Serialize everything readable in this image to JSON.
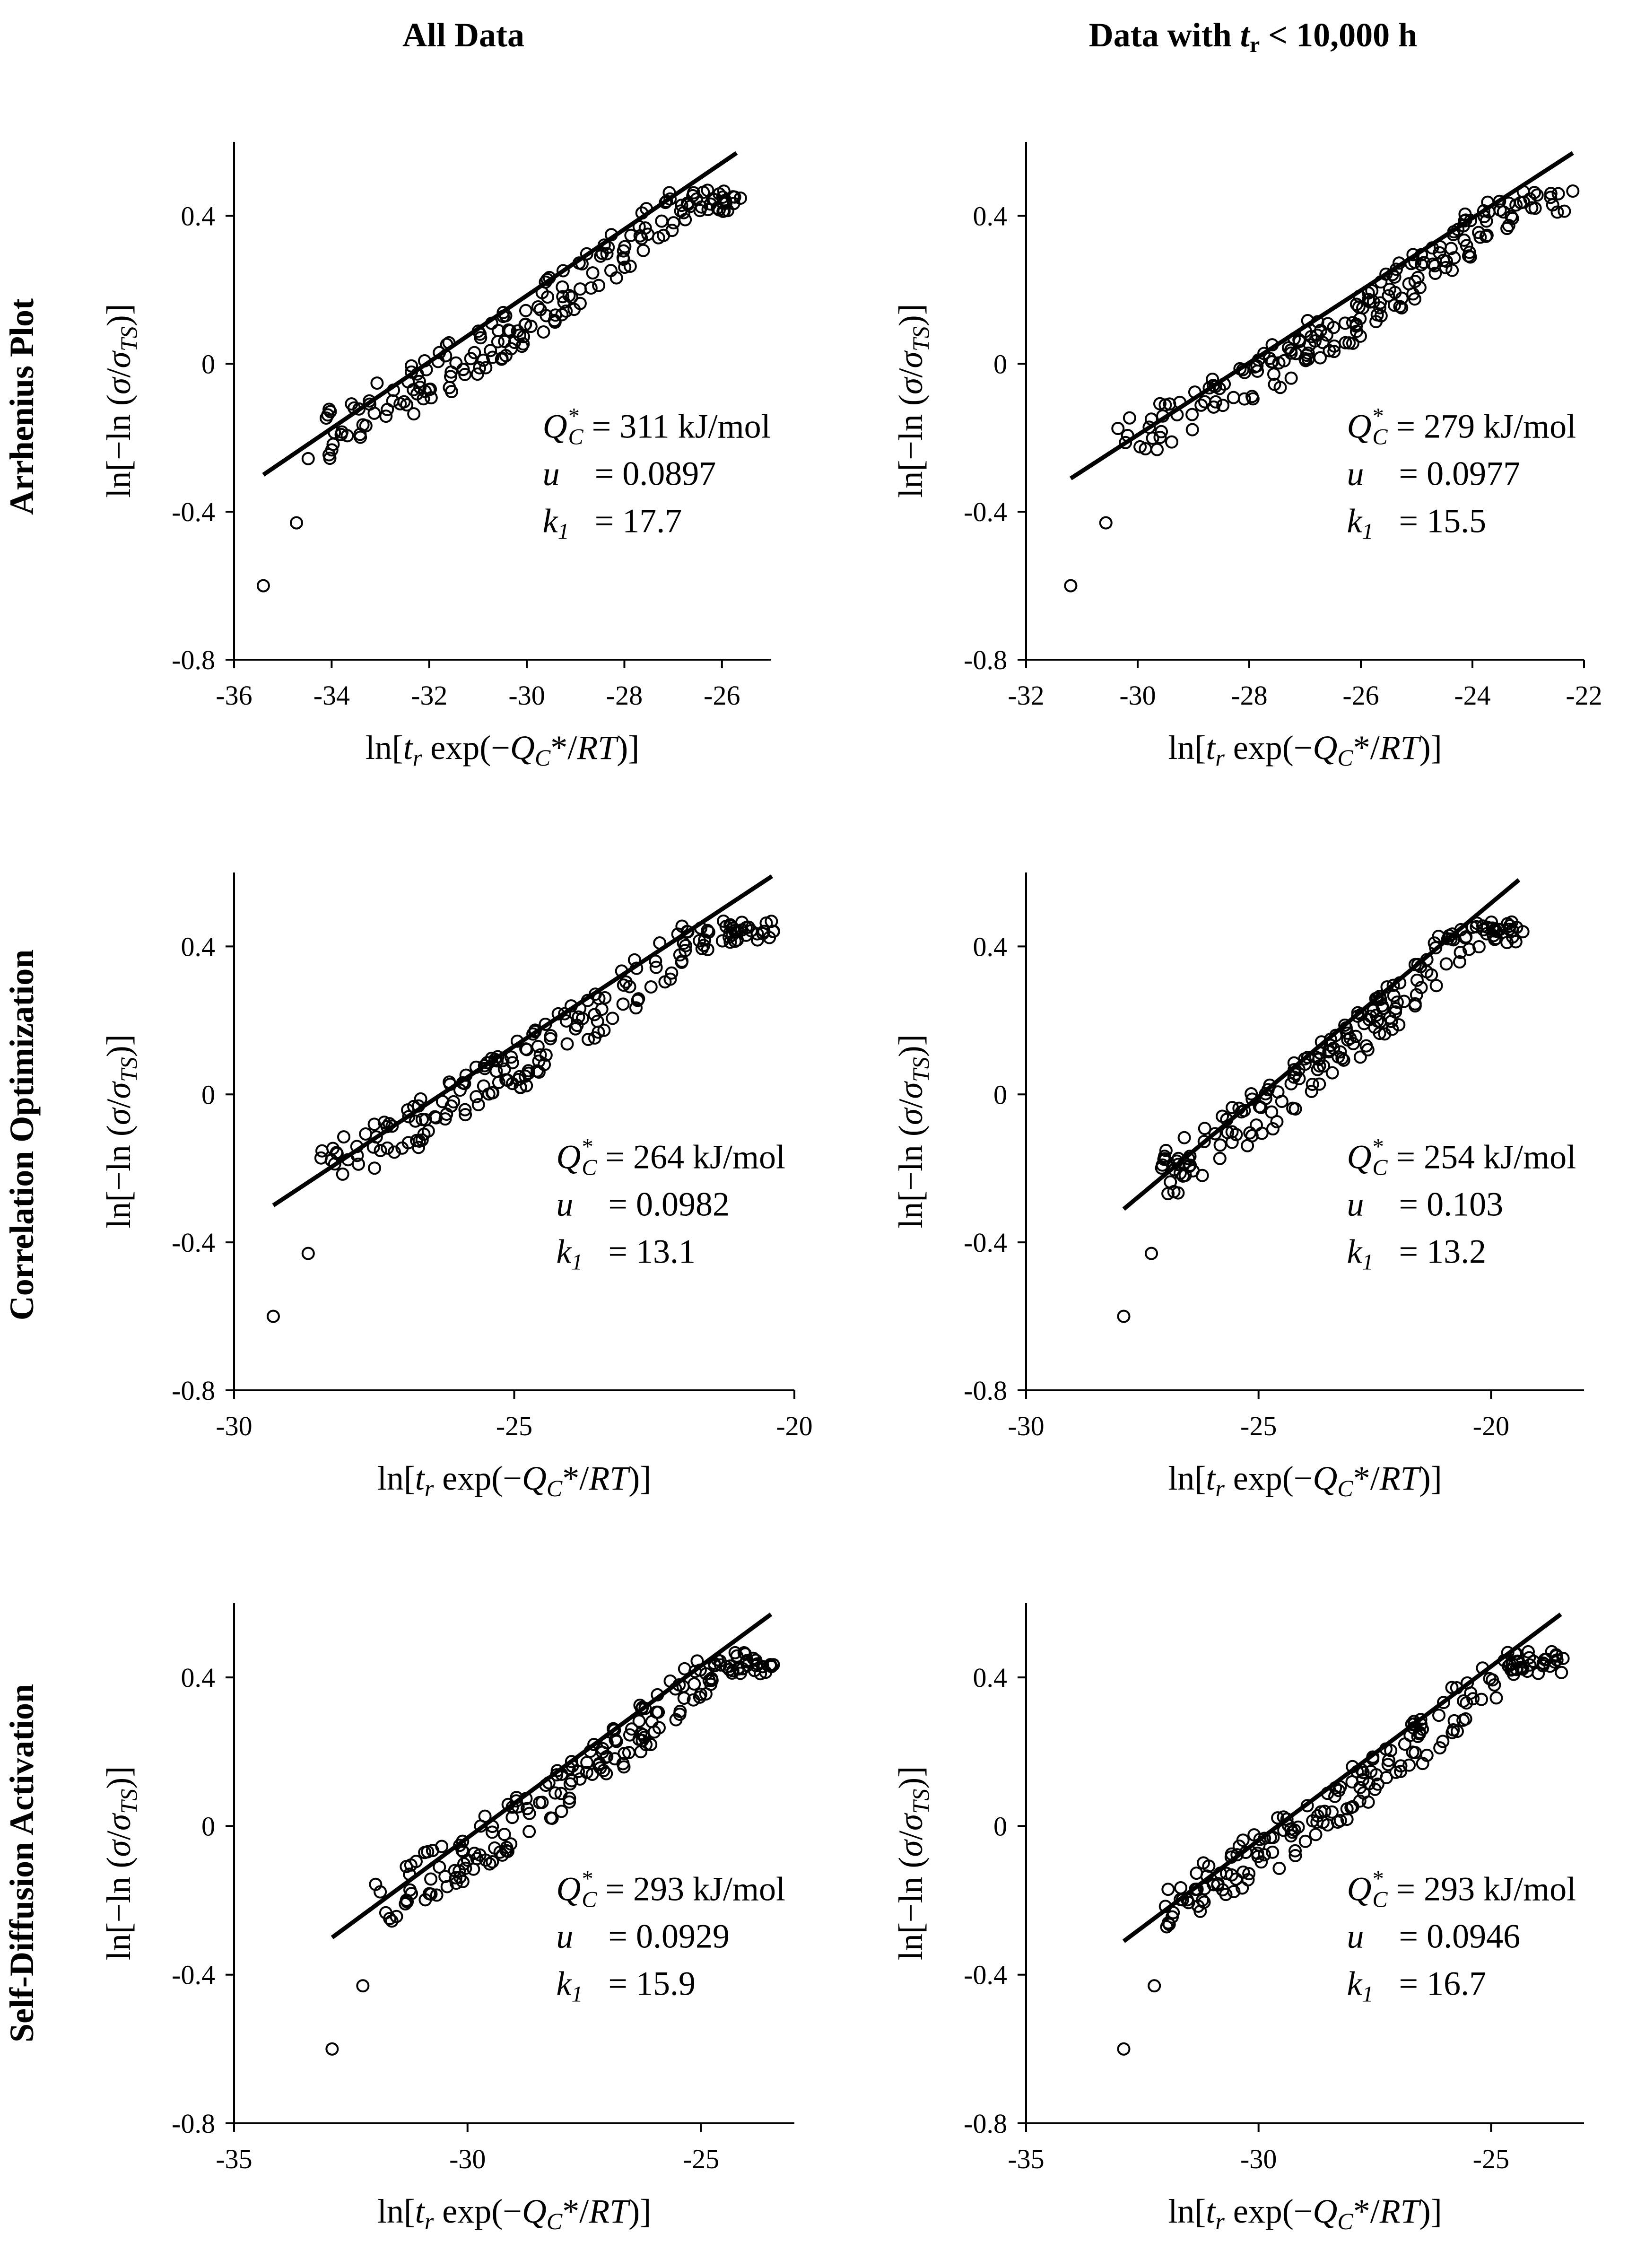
{
  "figure": {
    "column_titles": [
      {
        "pre": "All Data",
        "sym": "",
        "sub": "",
        "post": ""
      },
      {
        "pre": "Data with ",
        "sym": "t",
        "sub": "r",
        "post": " < 10,000 h"
      }
    ],
    "row_titles": [
      "Arrhenius Plot",
      "Correlation Optimization",
      "Self-Diffusion Activation"
    ],
    "x_axis_label": {
      "a": "ln[",
      "b": "t",
      "c": "r",
      "d": " exp(−",
      "e": "Q",
      "f": "C",
      "g": "*/",
      "h": "RT",
      "i": ")]"
    },
    "y_axis_label": {
      "a": "ln[−ln (",
      "b": "σ",
      "c": "/",
      "d": "σ",
      "e": "TS",
      "f": ")]"
    },
    "annotation_labels": {
      "q": "Q",
      "q_sub": "C",
      "q_sup": "*",
      "u": "u",
      "k": "k",
      "k_sub": "1",
      "eq": "=",
      "q_unit": "kJ/mol"
    }
  },
  "chart_data": [
    {
      "id": "arrhenius-all",
      "type": "scatter",
      "title": "Arrhenius Plot — All Data",
      "xlim": [
        -36,
        -25
      ],
      "xticks": [
        -36,
        -34,
        -32,
        -30,
        -28,
        -26
      ],
      "ylim": [
        -0.8,
        0.6
      ],
      "yticks": [
        -0.8,
        -0.4,
        0,
        0.4
      ],
      "fit_line": {
        "x": [
          -35.4,
          -25.7
        ],
        "y": [
          -0.3,
          0.57
        ]
      },
      "Qc": "311",
      "u": "0.0897",
      "k1": "17.7"
    },
    {
      "id": "arrhenius-subset",
      "type": "scatter",
      "title": "Arrhenius Plot — Data with tr < 10,000 h",
      "xlim": [
        -32,
        -22
      ],
      "xticks": [
        -32,
        -30,
        -28,
        -26,
        -24,
        -22
      ],
      "ylim": [
        -0.8,
        0.6
      ],
      "yticks": [
        -0.8,
        -0.4,
        0,
        0.4
      ],
      "fit_line": {
        "x": [
          -31.2,
          -22.2
        ],
        "y": [
          -0.31,
          0.57
        ]
      },
      "Qc": "279",
      "u": "0.0977",
      "k1": "15.5"
    },
    {
      "id": "correlation-all",
      "type": "scatter",
      "title": "Correlation Optimization — All Data",
      "xlim": [
        -30,
        -20
      ],
      "xticks": [
        -30,
        -25,
        -20
      ],
      "ylim": [
        -0.8,
        0.6
      ],
      "yticks": [
        -0.8,
        -0.4,
        0,
        0.4
      ],
      "fit_line": {
        "x": [
          -29.3,
          -20.4
        ],
        "y": [
          -0.3,
          0.59
        ]
      },
      "Qc": "264",
      "u": "0.0982",
      "k1": "13.1"
    },
    {
      "id": "correlation-subset",
      "type": "scatter",
      "title": "Correlation Optimization — Data with tr < 10,000 h",
      "xlim": [
        -30,
        -18
      ],
      "xticks": [
        -30,
        -25,
        -20
      ],
      "ylim": [
        -0.8,
        0.6
      ],
      "yticks": [
        -0.8,
        -0.4,
        0,
        0.4
      ],
      "fit_line": {
        "x": [
          -27.9,
          -19.4
        ],
        "y": [
          -0.31,
          0.58
        ]
      },
      "Qc": "254",
      "u": "0.103",
      "k1": "13.2"
    },
    {
      "id": "selfdiffusion-all",
      "type": "scatter",
      "title": "Self-Diffusion Activation — All Data",
      "xlim": [
        -35,
        -23
      ],
      "xticks": [
        -35,
        -30,
        -25
      ],
      "ylim": [
        -0.8,
        0.6
      ],
      "yticks": [
        -0.8,
        -0.4,
        0,
        0.4
      ],
      "fit_line": {
        "x": [
          -32.9,
          -23.5
        ],
        "y": [
          -0.3,
          0.57
        ]
      },
      "Qc": "293",
      "u": "0.0929",
      "k1": "15.9"
    },
    {
      "id": "selfdiffusion-subset",
      "type": "scatter",
      "title": "Self-Diffusion Activation — Data with tr < 10,000 h",
      "xlim": [
        -35,
        -23
      ],
      "xticks": [
        -35,
        -30,
        -25
      ],
      "ylim": [
        -0.8,
        0.6
      ],
      "yticks": [
        -0.8,
        -0.4,
        0,
        0.4
      ],
      "fit_line": {
        "x": [
          -32.9,
          -23.5
        ],
        "y": [
          -0.31,
          0.57
        ]
      },
      "Qc": "293",
      "u": "0.0946",
      "k1": "16.7"
    }
  ]
}
